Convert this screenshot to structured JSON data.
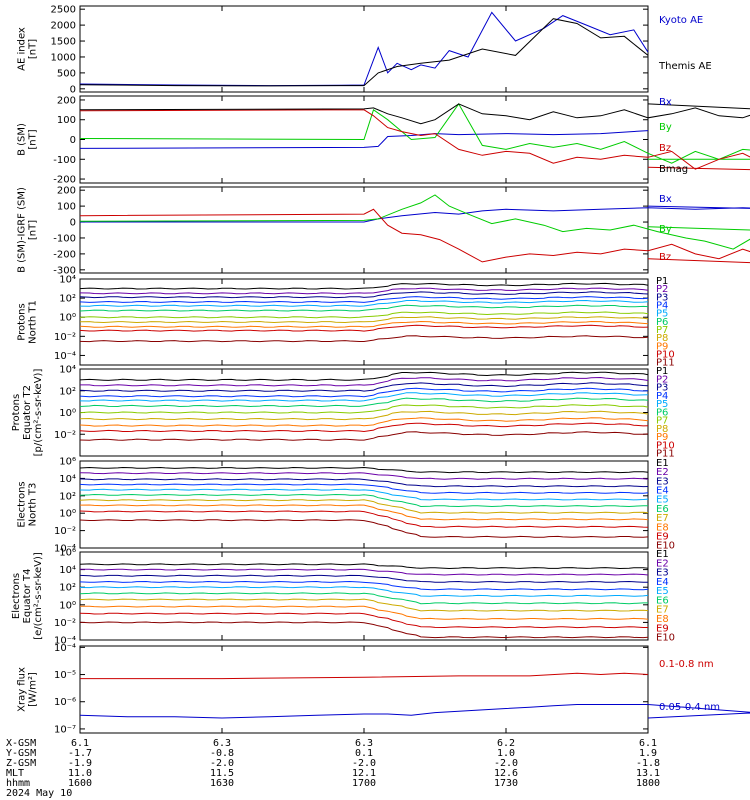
{
  "chart_data": [
    {
      "type": "line",
      "id": "ae",
      "ylabel": "AE index [nT]",
      "ylim": [
        -100,
        2600
      ],
      "yticks": [
        0,
        500,
        1000,
        1500,
        2000,
        2500
      ],
      "ytick_labels": [
        "0",
        "500",
        "1000",
        "1500",
        "2000",
        "2500"
      ],
      "log": false,
      "series": [
        {
          "name": "Kyoto AE",
          "color": "#0000cc",
          "x": [
            1600,
            1620,
            1640,
            1655,
            1700,
            1703,
            1705,
            1707,
            1710,
            1712,
            1715,
            1718,
            1722,
            1727,
            1732,
            1738,
            1742,
            1747,
            1752,
            1757,
            1800
          ],
          "y": [
            150,
            120,
            100,
            110,
            120,
            1300,
            500,
            800,
            600,
            750,
            650,
            1200,
            1000,
            2400,
            1500,
            1900,
            2300,
            2000,
            1700,
            1850,
            1150
          ]
        },
        {
          "name": "Themis AE",
          "color": "#000000",
          "x": [
            1600,
            1620,
            1640,
            1655,
            1700,
            1703,
            1707,
            1712,
            1718,
            1725,
            1732,
            1740,
            1745,
            1750,
            1755,
            1800
          ],
          "y": [
            130,
            100,
            90,
            100,
            100,
            500,
            700,
            800,
            900,
            1250,
            1050,
            2200,
            2050,
            1600,
            1650,
            1050
          ]
        }
      ]
    },
    {
      "type": "line",
      "id": "bsm",
      "ylabel": "B (SM) [nT]",
      "ylim": [
        -220,
        220
      ],
      "yticks": [
        -200,
        -100,
        0,
        100,
        200
      ],
      "ytick_labels": [
        "-200",
        "-100",
        "0",
        "100",
        "200"
      ],
      "log": false,
      "series": [
        {
          "name": "Bx",
          "color": "#0000cc",
          "x": [
            1600,
            1700,
            1703,
            1705,
            1710,
            1715,
            1720,
            1730,
            1740,
            1750,
            1800
          ],
          "y": [
            -45,
            -40,
            -35,
            15,
            20,
            30,
            25,
            30,
            25,
            30,
            45
          ]
        },
        {
          "name": "By",
          "color": "#00cc00",
          "x": [
            1600,
            1700,
            1702,
            1705,
            1710,
            1715,
            1720,
            1725,
            1730,
            1735,
            1740,
            1745,
            1750,
            1755,
            1760,
            1765,
            1770,
            1775,
            1780,
            1785,
            1790,
            1795,
            1800
          ],
          "y": [
            5,
            0,
            150,
            100,
            0,
            10,
            180,
            -30,
            -50,
            -20,
            -40,
            -20,
            -50,
            -10,
            -70,
            -120,
            -60,
            -100,
            -50,
            -60,
            -90,
            -100,
            -100
          ]
        },
        {
          "name": "Bz",
          "color": "#cc0000",
          "x": [
            1600,
            1700,
            1702,
            1705,
            1708,
            1712,
            1715,
            1720,
            1725,
            1730,
            1735,
            1740,
            1745,
            1750,
            1755,
            1760,
            1765,
            1770,
            1775,
            1780,
            1785,
            1790,
            1795,
            1800
          ],
          "y": [
            145,
            150,
            120,
            60,
            40,
            20,
            30,
            -50,
            -80,
            -60,
            -70,
            -120,
            -90,
            -100,
            -80,
            -90,
            -60,
            -150,
            -100,
            -70,
            -130,
            -110,
            -160,
            -140
          ]
        },
        {
          "name": "Bmag",
          "color": "#000000",
          "x": [
            1600,
            1700,
            1702,
            1705,
            1708,
            1712,
            1715,
            1720,
            1725,
            1730,
            1735,
            1740,
            1745,
            1750,
            1755,
            1760,
            1765,
            1770,
            1775,
            1780,
            1785,
            1790,
            1795,
            1800
          ],
          "y": [
            150,
            155,
            160,
            130,
            110,
            80,
            100,
            180,
            130,
            120,
            100,
            140,
            110,
            120,
            150,
            110,
            130,
            160,
            120,
            110,
            150,
            120,
            140,
            180
          ]
        }
      ]
    },
    {
      "type": "line",
      "id": "digrf",
      "ylabel": "B (SM)-IGRF (SM) [nT]",
      "ylim": [
        -320,
        220
      ],
      "yticks": [
        -300,
        -200,
        -100,
        0,
        100,
        200
      ],
      "ytick_labels": [
        "-300",
        "-200",
        "-100",
        "0",
        "100",
        "200"
      ],
      "log": false,
      "series": [
        {
          "name": "Bx",
          "color": "#0000cc",
          "x": [
            1600,
            1700,
            1703,
            1708,
            1715,
            1720,
            1725,
            1730,
            1740,
            1750,
            1760,
            1770,
            1780,
            1790,
            1800
          ],
          "y": [
            0,
            0,
            20,
            40,
            60,
            50,
            70,
            80,
            70,
            80,
            90,
            80,
            90,
            80,
            100
          ]
        },
        {
          "name": "By",
          "color": "#00cc00",
          "x": [
            1600,
            1700,
            1703,
            1708,
            1712,
            1715,
            1718,
            1722,
            1727,
            1732,
            1738,
            1742,
            1747,
            1752,
            1757,
            1762,
            1768,
            1772,
            1778,
            1782,
            1788,
            1792,
            1800
          ],
          "y": [
            5,
            10,
            20,
            80,
            120,
            170,
            100,
            50,
            -10,
            20,
            -20,
            -60,
            -40,
            -50,
            -20,
            -60,
            -100,
            -120,
            -170,
            -100,
            -120,
            -60,
            -30
          ]
        },
        {
          "name": "Bz",
          "color": "#cc0000",
          "x": [
            1600,
            1700,
            1702,
            1705,
            1708,
            1712,
            1716,
            1720,
            1725,
            1730,
            1735,
            1740,
            1745,
            1750,
            1755,
            1760,
            1765,
            1770,
            1775,
            1780,
            1785,
            1790,
            1795,
            1800
          ],
          "y": [
            40,
            50,
            80,
            -20,
            -70,
            -80,
            -110,
            -170,
            -250,
            -220,
            -200,
            -210,
            -190,
            -200,
            -170,
            -180,
            -140,
            -200,
            -230,
            -170,
            -220,
            -200,
            -270,
            -230
          ]
        }
      ]
    },
    {
      "type": "line",
      "id": "pn",
      "ylabel": "Protons North T1",
      "ylim_log": [
        -5,
        4
      ],
      "yticks_log": [
        -4,
        -2,
        0,
        2,
        4
      ],
      "ytick_labels": [
        "10⁻⁴",
        "10⁻²",
        "10⁰",
        "10²",
        "10⁴"
      ],
      "log": true,
      "legend": [
        "P1",
        "P2",
        "P3",
        "P4",
        "P5",
        "P6",
        "P7",
        "P8",
        "P9",
        "P10",
        "P11"
      ],
      "legend_colors": [
        "#000000",
        "#6a00a8",
        "#00008b",
        "#0033ff",
        "#00aaff",
        "#00cc66",
        "#88cc00",
        "#ccaa00",
        "#ff7700",
        "#cc0000",
        "#880000"
      ]
    },
    {
      "type": "line",
      "id": "pe",
      "ylabel": "Protons Equator T2 [p/(cm²-s-sr-keV)]",
      "ylim_log": [
        -4,
        4
      ],
      "yticks_log": [
        -2,
        0,
        2,
        4
      ],
      "ytick_labels": [
        "10⁻²",
        "10⁰",
        "10²",
        "10⁴"
      ],
      "log": true,
      "legend": [
        "P1",
        "P2",
        "P3",
        "P4",
        "P5",
        "P6",
        "P7",
        "P8",
        "P9",
        "P10",
        "P11"
      ],
      "legend_colors": [
        "#000000",
        "#6a00a8",
        "#00008b",
        "#0033ff",
        "#00aaff",
        "#00cc66",
        "#88cc00",
        "#ccaa00",
        "#ff7700",
        "#cc0000",
        "#880000"
      ]
    },
    {
      "type": "line",
      "id": "en",
      "ylabel": "Electrons North T3",
      "ylim_log": [
        -4,
        6
      ],
      "yticks_log": [
        -4,
        -2,
        0,
        2,
        4,
        6
      ],
      "ytick_labels": [
        "10⁻⁴",
        "10⁻²",
        "10⁰",
        "10²",
        "10⁴",
        "10⁶"
      ],
      "log": true,
      "legend": [
        "E1",
        "E2",
        "E3",
        "E4",
        "E5",
        "E6",
        "E7",
        "E8",
        "E9",
        "E10"
      ],
      "legend_colors": [
        "#000000",
        "#6a00a8",
        "#00008b",
        "#0033ff",
        "#00aaff",
        "#00cc66",
        "#ccaa00",
        "#ff7700",
        "#cc0000",
        "#880000"
      ]
    },
    {
      "type": "line",
      "id": "ee",
      "ylabel": "Electrons Equator T4 [e/(cm²-s-sr-keV)]",
      "ylim_log": [
        -4,
        6
      ],
      "yticks_log": [
        -4,
        -2,
        0,
        2,
        4,
        6
      ],
      "ytick_labels": [
        "10⁻⁴",
        "10⁻²",
        "10⁰",
        "10²",
        "10⁴",
        "10⁶"
      ],
      "log": true,
      "legend": [
        "E1",
        "E2",
        "E3",
        "E4",
        "E5",
        "E6",
        "E7",
        "E8",
        "E9",
        "E10"
      ],
      "legend_colors": [
        "#000000",
        "#6a00a8",
        "#00008b",
        "#0033ff",
        "#00aaff",
        "#00cc66",
        "#ccaa00",
        "#ff7700",
        "#cc0000",
        "#880000"
      ]
    },
    {
      "type": "line",
      "id": "xray",
      "ylabel": "Xray flux [W/m²]",
      "ylim_log": [
        -7.15,
        -3.95
      ],
      "yticks_log": [
        -7,
        -6,
        -5,
        -4
      ],
      "ytick_labels": [
        "10⁻⁷",
        "10⁻⁶",
        "10⁻⁵",
        "10⁻⁴"
      ],
      "log": true,
      "series": [
        {
          "name": "0.1-0.8 nm",
          "color": "#cc0000",
          "x": [
            1600,
            1630,
            1700,
            1720,
            1735,
            1745,
            1750,
            1755,
            1800
          ],
          "y": [
            -5.15,
            -5.15,
            -5.1,
            -5.05,
            -5.05,
            -4.95,
            -5.0,
            -4.95,
            -5.0
          ]
        },
        {
          "name": "0.05-0.4 nm",
          "color": "#0000cc",
          "x": [
            1600,
            1610,
            1620,
            1630,
            1640,
            1650,
            1700,
            1705,
            1710,
            1715,
            1720,
            1725,
            1730,
            1735,
            1740,
            1745,
            1750,
            1755,
            1760,
            1790,
            1795,
            1800
          ],
          "y": [
            -6.5,
            -6.55,
            -6.55,
            -6.6,
            -6.55,
            -6.5,
            -6.45,
            -6.45,
            -6.5,
            -6.4,
            -6.35,
            -6.3,
            -6.25,
            -6.2,
            -6.15,
            -6.1,
            -6.1,
            -6.1,
            -6.1,
            -6.5,
            -6.3,
            -6.6
          ]
        }
      ]
    }
  ],
  "x_axis": {
    "xlim": [
      1600,
      1800
    ],
    "tick_hhmm": [
      1600,
      1630,
      1700,
      1730,
      1800
    ],
    "row_labels": [
      "X-GSM",
      "Y-GSM",
      "Z-GSM",
      "MLT",
      "hhmm"
    ],
    "columns": [
      [
        "6.1",
        "-1.7",
        "-1.9",
        "11.0",
        "1600"
      ],
      [
        "6.3",
        "-0.8",
        "-2.0",
        "11.5",
        "1630"
      ],
      [
        "6.3",
        "0.1",
        "-2.0",
        "12.1",
        "1700"
      ],
      [
        "6.2",
        "1.0",
        "-2.0",
        "12.6",
        "1730"
      ],
      [
        "6.1",
        "1.9",
        "-1.8",
        "13.1",
        "1800"
      ]
    ],
    "date": "2024 May 10"
  },
  "colors": {
    "blue": "#0000cc",
    "red": "#cc0000",
    "green": "#00cc00",
    "black": "#000000"
  }
}
